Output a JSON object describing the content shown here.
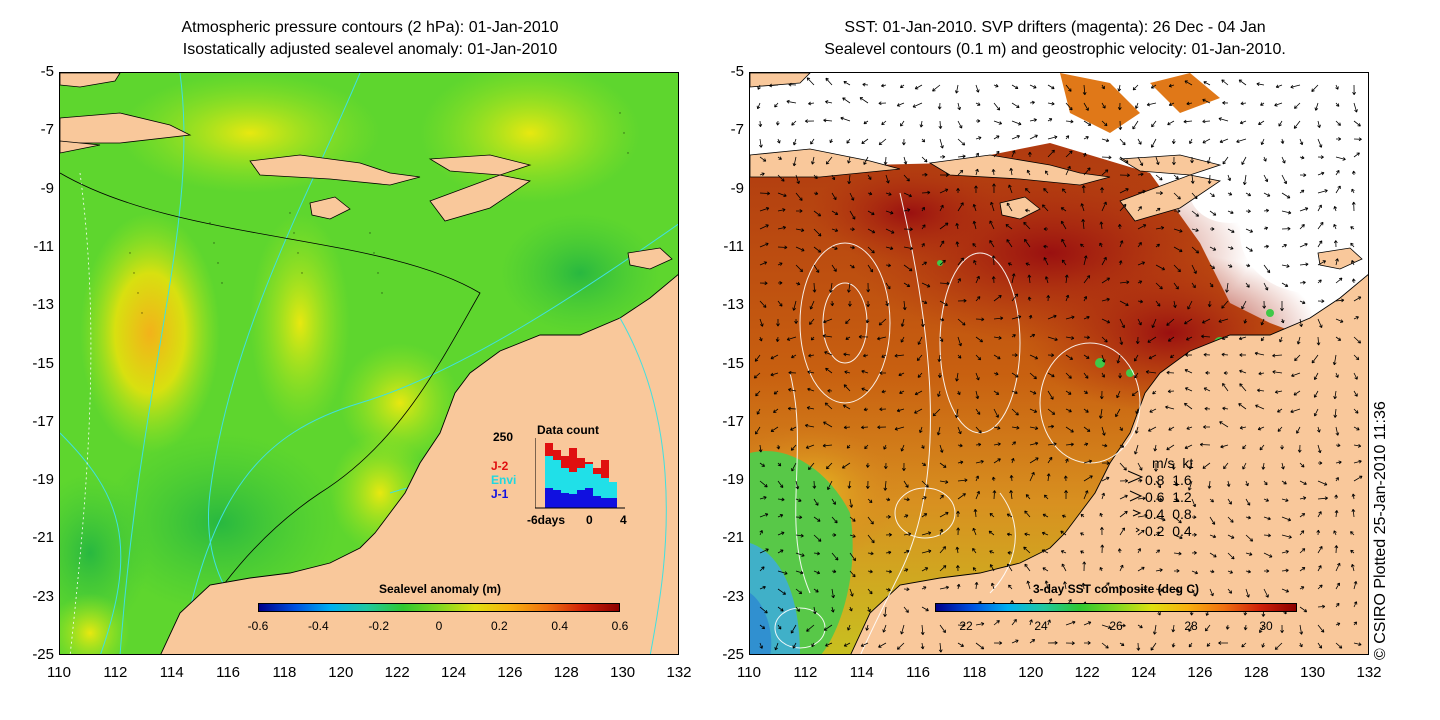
{
  "left_panel": {
    "title_line1": "Atmospheric pressure contours (2 hPa): 01-Jan-2010",
    "title_line2": "Isostatically adjusted sealevel anomaly: 01-Jan-2010",
    "colorbar": {
      "label": "Sealevel anomaly (m)",
      "ticks": [
        "-0.6",
        "-0.4",
        "-0.2",
        "0",
        "0.2",
        "0.4",
        "0.6"
      ]
    },
    "data_count": {
      "title": "Data count",
      "ymax_label": "250",
      "legend": [
        "J-2",
        "Envi",
        "J-1"
      ],
      "legend_colors": [
        "#e01010",
        "#20e0e8",
        "#1010e0"
      ],
      "x_labels": [
        "-6days",
        "0",
        "4"
      ]
    }
  },
  "right_panel": {
    "title_line1": "SST: 01-Jan-2010. SVP drifters (magenta): 26 Dec - 04 Jan",
    "title_line2": "Sealevel contours (0.1 m) and geostrophic velocity: 01-Jan-2010.",
    "colorbar": {
      "label": "3-day SST composite (deg C)",
      "ticks": [
        "22",
        "24",
        "26",
        "28",
        "30"
      ]
    },
    "velocity_legend": {
      "header": "m/s  kt",
      "rows": [
        "0.8  1.6",
        "0.6  1.2",
        "0.4  0.8",
        "0.2  0.4"
      ]
    }
  },
  "axes": {
    "y_ticks": [
      "-5",
      "-7",
      "-9",
      "-11",
      "-13",
      "-15",
      "-17",
      "-19",
      "-21",
      "-23",
      "-25"
    ],
    "x_ticks": [
      "110",
      "112",
      "114",
      "116",
      "118",
      "120",
      "122",
      "124",
      "126",
      "128",
      "130",
      "132"
    ]
  },
  "credit": "© CSIRO Plotted 25-Jan-2010 11:36",
  "colors": {
    "land": "#f9c89b",
    "ocean_green": "#5ed62e",
    "sst_warm": "#c05008",
    "sst_hot": "#8a0c0c"
  }
}
